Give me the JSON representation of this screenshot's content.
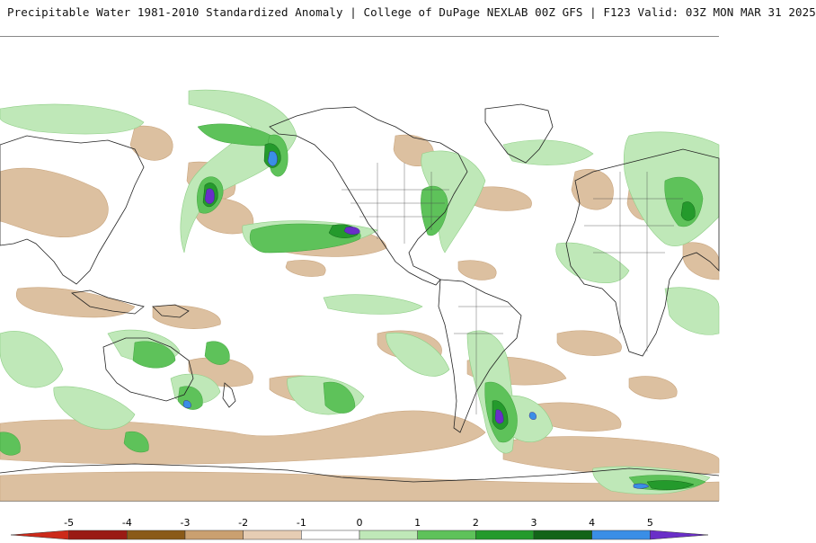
{
  "header": {
    "title": "Precipitable Water 1981-2010 Standardized Anomaly | College of DuPage NEXLAB  00Z GFS | F123 Valid: 03Z MON MAR 31 2025"
  },
  "map": {
    "projection": "cylindrical-equidistant",
    "center": "pacific"
  },
  "colorbar": {
    "labels": [
      "-5",
      "-4",
      "-3",
      "-2",
      "-1",
      "0",
      "1",
      "2",
      "3",
      "4",
      "5"
    ],
    "colors": [
      "#cc2a1a",
      "#9a1a14",
      "#8a5a18",
      "#caa070",
      "#e6cdb4",
      "#ffffff",
      "#bfe8b8",
      "#5ec25a",
      "#249a2c",
      "#126418",
      "#3a8ee6",
      "#6a2ec8"
    ]
  }
}
